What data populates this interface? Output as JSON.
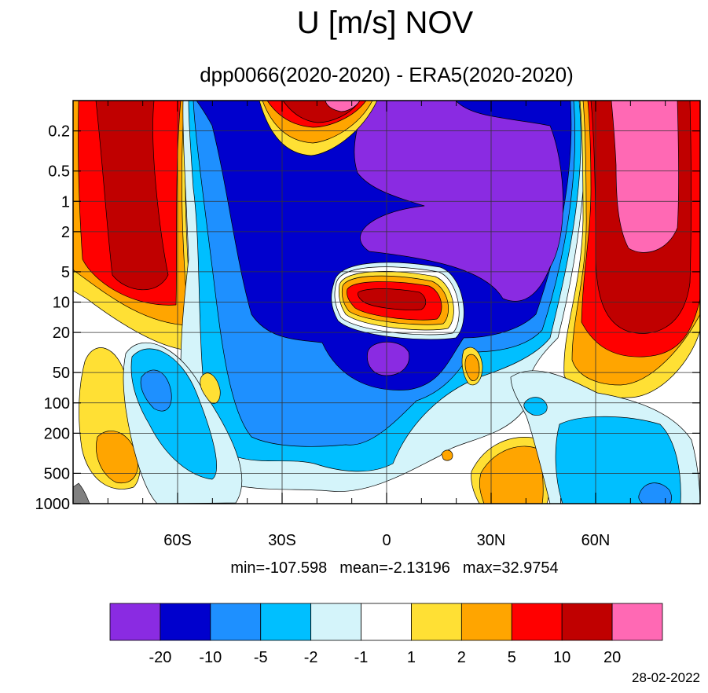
{
  "chart_data": {
    "type": "heatmap",
    "title": "U [m/s] NOV",
    "subtitle": "dpp0066(2020-2020) - ERA5(2020-2020)",
    "x_axis": {
      "range": [
        -90,
        90
      ],
      "ticks": [
        {
          "value": -60,
          "label": "60S"
        },
        {
          "value": -30,
          "label": "30S"
        },
        {
          "value": 0,
          "label": "0"
        },
        {
          "value": 30,
          "label": "30N"
        },
        {
          "value": 60,
          "label": "60N"
        }
      ],
      "minor_step": 10
    },
    "y_axis": {
      "scale": "log",
      "inverted": true,
      "range": [
        0.1,
        1000
      ],
      "ticks": [
        0.2,
        0.5,
        1,
        2,
        5,
        10,
        20,
        50,
        100,
        200,
        500,
        1000
      ],
      "tick_labels": [
        "0.2",
        "0.5",
        "1",
        "2",
        "5",
        "10",
        "20",
        "50",
        "100",
        "200",
        "500",
        "1000"
      ]
    },
    "grid": true,
    "stats": {
      "min": "-107.598",
      "mean": "-2.13196",
      "max": "32.9754"
    },
    "stats_labels": {
      "min": "min=",
      "mean": "mean=",
      "max": "max="
    },
    "colorbar": {
      "placement": "bottom",
      "colors": [
        "#8a2be2",
        "#0000cd",
        "#1e90ff",
        "#00bfff",
        "#d4f4fa",
        "#ffffff",
        "#ffe034",
        "#ffa500",
        "#ff0000",
        "#c00000",
        "#ff69b4"
      ],
      "boundary_labels": [
        "-20",
        "-10",
        "-5",
        "-2",
        "-1",
        "1",
        "2",
        "5",
        "10",
        "20"
      ]
    },
    "contour_levels": [
      -20,
      -10,
      -5,
      -2,
      -1,
      1,
      2,
      5,
      10,
      20
    ],
    "missing_color": "#808080"
  },
  "date": "28-02-2022"
}
